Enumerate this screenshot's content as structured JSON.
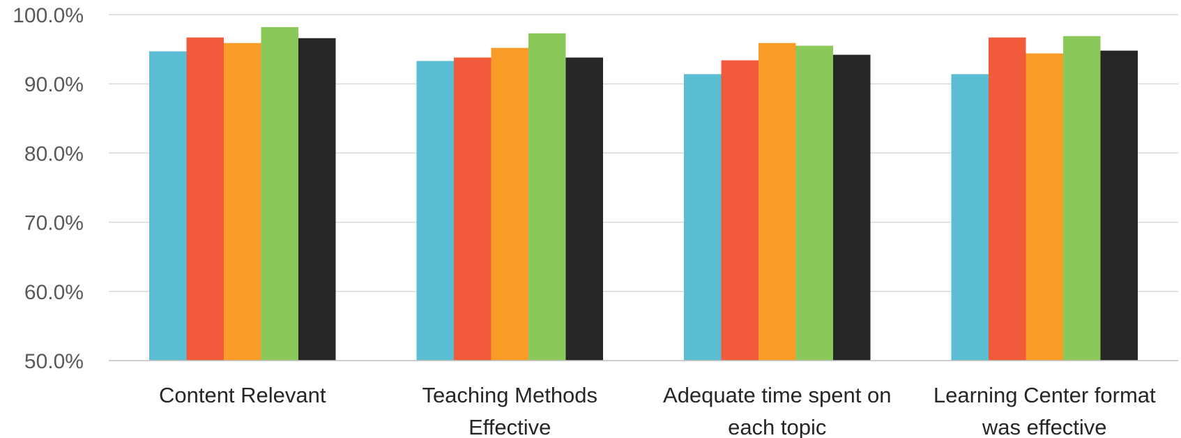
{
  "chart_data": {
    "type": "bar",
    "title": "",
    "xlabel": "",
    "ylabel": "",
    "ylim": [
      50,
      100
    ],
    "y_ticks": [
      "50.0%",
      "60.0%",
      "70.0%",
      "80.0%",
      "90.0%",
      "100.0%"
    ],
    "y_tick_values": [
      50,
      60,
      70,
      80,
      90,
      100
    ],
    "grid": true,
    "legend": "none",
    "categories": [
      [
        "Content Relevant"
      ],
      [
        "Teaching Methods",
        "Effective"
      ],
      [
        "Adequate time spent on",
        "each topic"
      ],
      [
        "Learning Center format",
        "was effective"
      ]
    ],
    "series": [
      {
        "color": "#5bbdd2",
        "values": [
          94.7,
          93.3,
          91.4,
          91.4
        ]
      },
      {
        "color": "#f15b3b",
        "values": [
          96.7,
          93.8,
          93.4,
          96.7
        ]
      },
      {
        "color": "#f99b27",
        "values": [
          95.9,
          95.2,
          95.9,
          94.4
        ]
      },
      {
        "color": "#8bc85a",
        "values": [
          98.2,
          97.3,
          95.5,
          96.9
        ]
      },
      {
        "color": "#262626",
        "values": [
          96.6,
          93.8,
          94.2,
          94.8
        ]
      }
    ]
  }
}
